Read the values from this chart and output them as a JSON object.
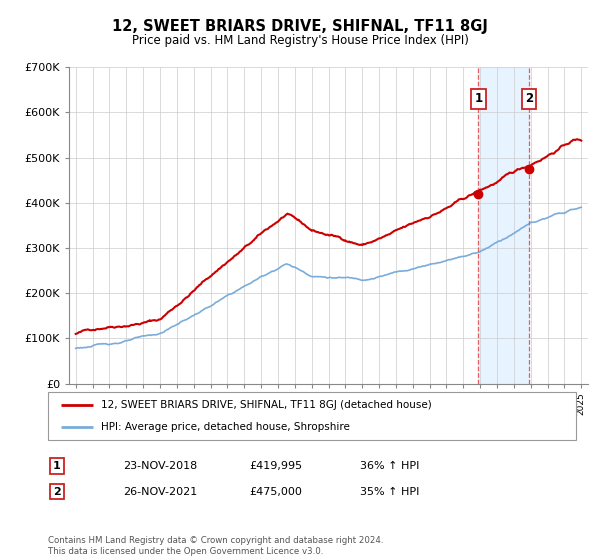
{
  "title": "12, SWEET BRIARS DRIVE, SHIFNAL, TF11 8GJ",
  "subtitle": "Price paid vs. HM Land Registry's House Price Index (HPI)",
  "legend_label_red": "12, SWEET BRIARS DRIVE, SHIFNAL, TF11 8GJ (detached house)",
  "legend_label_blue": "HPI: Average price, detached house, Shropshire",
  "annotation1_label": "1",
  "annotation1_date": "23-NOV-2018",
  "annotation1_price": "£419,995",
  "annotation1_hpi": "36% ↑ HPI",
  "annotation2_label": "2",
  "annotation2_date": "26-NOV-2021",
  "annotation2_price": "£475,000",
  "annotation2_hpi": "35% ↑ HPI",
  "footer": "Contains HM Land Registry data © Crown copyright and database right 2024.\nThis data is licensed under the Open Government Licence v3.0.",
  "red_color": "#cc0000",
  "blue_color": "#7aacdb",
  "vline_color": "#e06060",
  "shade_color": "#ddeeff",
  "marker_color": "#cc0000",
  "annotation_box_color": "#cc2222",
  "ylim": [
    0,
    700000
  ],
  "yticks": [
    0,
    100000,
    200000,
    300000,
    400000,
    500000,
    600000,
    700000
  ],
  "ytick_labels": [
    "£0",
    "£100K",
    "£200K",
    "£300K",
    "£400K",
    "£500K",
    "£600K",
    "£700K"
  ],
  "year_start": 1995,
  "year_end": 2025,
  "sale1_year": 2018.9,
  "sale1_value": 419995,
  "sale2_year": 2021.9,
  "sale2_value": 475000
}
